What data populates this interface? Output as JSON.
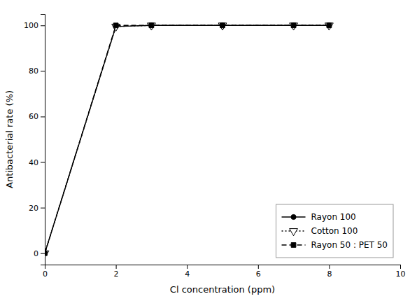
{
  "chart_data": {
    "type": "line",
    "xlabel": "Cl concentration (ppm)",
    "ylabel": "Antibacterial rate (%)",
    "x": [
      0,
      2,
      3,
      5,
      7,
      8
    ],
    "xlim": [
      0,
      10
    ],
    "ylim": [
      -5,
      105
    ],
    "xticks": [
      0,
      2,
      4,
      6,
      8,
      10
    ],
    "yticks": [
      0,
      20,
      40,
      60,
      80,
      100
    ],
    "grid": false,
    "legend": "lower right",
    "series": [
      {
        "name": "Rayon 100",
        "color": "#000000",
        "line_style": "solid",
        "marker": "circle",
        "values": [
          0,
          99.5,
          100,
          100,
          100,
          100
        ]
      },
      {
        "name": "Cotton 100",
        "color": "#000000",
        "line_style": "dotted",
        "marker": "triangle-down-open",
        "values": [
          0,
          99.5,
          100,
          100,
          100,
          100
        ]
      },
      {
        "name": "Rayon 50 : PET 50",
        "color": "#000000",
        "line_style": "dashed",
        "marker": "square",
        "values": [
          0,
          100,
          100,
          100,
          100,
          100
        ]
      }
    ]
  }
}
